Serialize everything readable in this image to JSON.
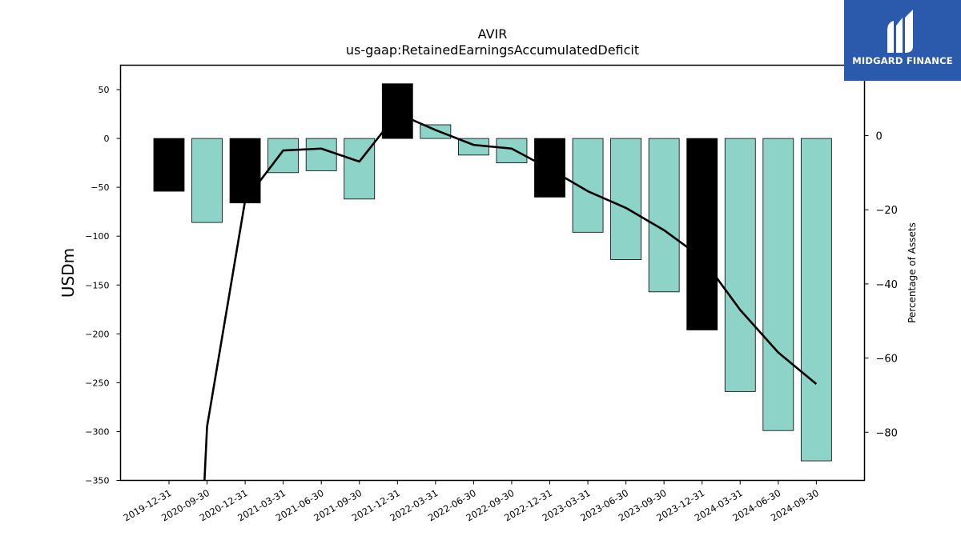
{
  "logo": {
    "brand": "MIDGARD FINANCE",
    "icon": "midgard-m-logo-icon",
    "bg_color": "#2b5aad"
  },
  "chart_data": {
    "type": "bar",
    "title": "AVIR",
    "subtitle": "us-gaap:RetainedEarningsAccumulatedDeficit",
    "ylabel": "USDm",
    "y2label": "Percentage of Assets",
    "ylim": [
      -350,
      75
    ],
    "y2lim": [
      -93,
      19
    ],
    "yticks": [
      50,
      0,
      -50,
      -100,
      -150,
      -200,
      -250,
      -300,
      -350
    ],
    "y2ticks": [
      0,
      -20,
      -40,
      -60,
      -80
    ],
    "ytick_labels": [
      "50",
      "0",
      "−50",
      "−100",
      "−150",
      "−200",
      "−250",
      "−300",
      "−350"
    ],
    "y2tick_labels": [
      "0",
      "−20",
      "−40",
      "−60",
      "−80"
    ],
    "grid": false,
    "categories": [
      "2019-12-31",
      "2020-09-30",
      "2020-12-31",
      "2021-03-31",
      "2021-06-30",
      "2021-09-30",
      "2021-12-31",
      "2022-03-31",
      "2022-06-30",
      "2022-09-30",
      "2022-12-31",
      "2023-03-31",
      "2023-06-30",
      "2023-09-30",
      "2023-12-31",
      "2024-03-31",
      "2024-06-30",
      "2024-09-30"
    ],
    "values": [
      -54,
      -86,
      -66,
      -35,
      -33,
      -62,
      56,
      14,
      -17,
      -25,
      -60,
      -96,
      -124,
      -157,
      -196,
      -259,
      -299,
      -330
    ],
    "annual": [
      true,
      false,
      true,
      false,
      false,
      false,
      true,
      false,
      false,
      false,
      true,
      false,
      false,
      false,
      true,
      false,
      false,
      false
    ],
    "colors": {
      "annual": "#000000",
      "quarterly": "#8dd3c7",
      "line": "#000000"
    },
    "pct_assets": [
      null,
      -78.5,
      -17.5,
      -4,
      -3.5,
      -7,
      6,
      1.5,
      -2.5,
      -3.5,
      -9,
      -15,
      -19.5,
      -25.5,
      -33,
      -47,
      -58.5,
      -67
    ]
  }
}
